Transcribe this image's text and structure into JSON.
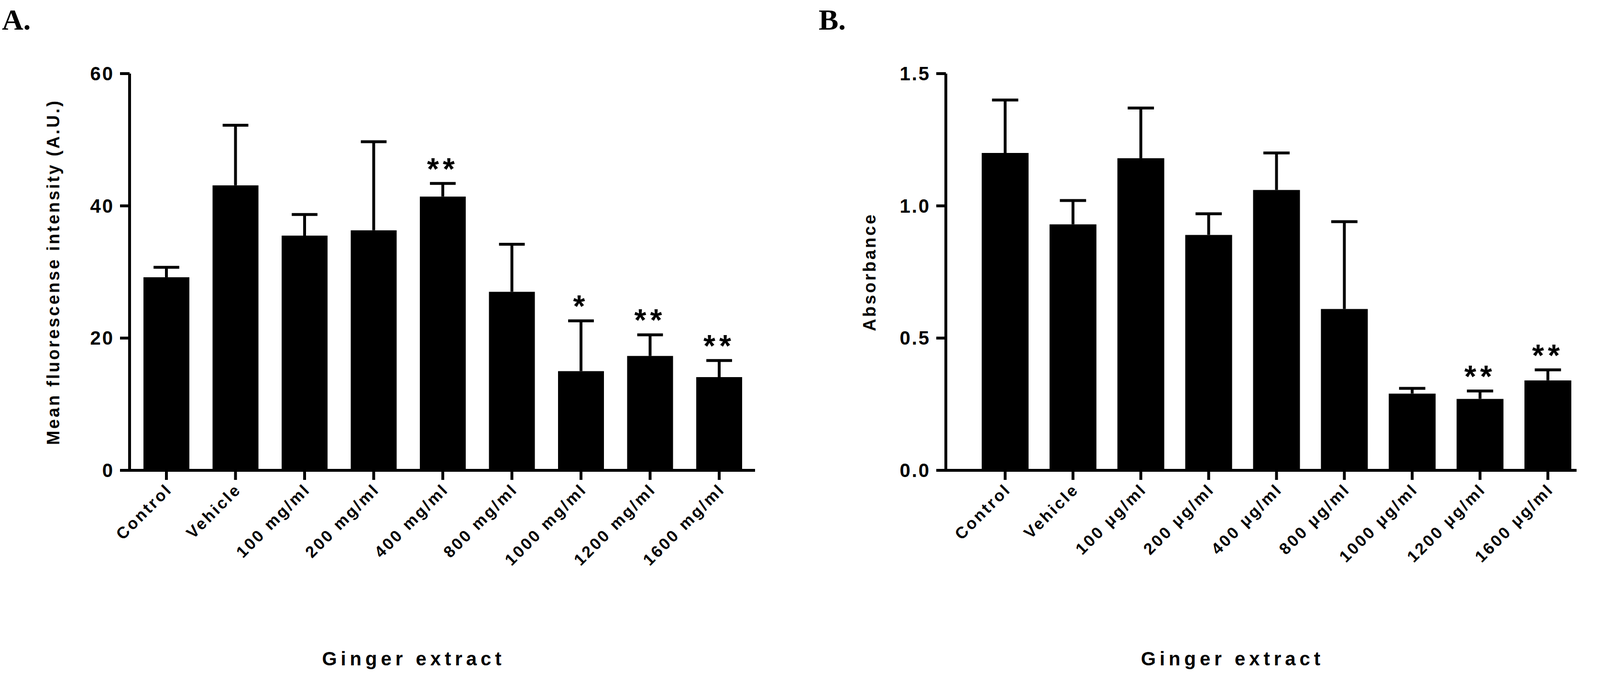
{
  "chart_data": [
    {
      "type": "bar",
      "title": "A.",
      "x_label": "Ginger extract",
      "y_label": "Mean fluorescense intensity (A.U.)",
      "categories": [
        "Control",
        "Vehicle",
        "100 mg/ml",
        "200 mg/ml",
        "400 mg/ml",
        "800 mg/ml",
        "1000 mg/ml",
        "1200 mg/ml",
        "1600 mg/ml"
      ],
      "values": [
        29.2,
        43.1,
        35.5,
        36.3,
        41.4,
        27.0,
        15.0,
        17.3,
        14.1
      ],
      "errors": [
        1.5,
        9.1,
        3.2,
        13.4,
        2.0,
        7.2,
        7.6,
        3.2,
        2.5
      ],
      "significance": [
        null,
        null,
        null,
        null,
        "**",
        null,
        "*",
        "**",
        "**"
      ],
      "color": "#000000",
      "ylim": [
        0,
        60
      ],
      "yticks": [
        0,
        20,
        40,
        60
      ],
      "grid": false
    },
    {
      "type": "bar",
      "title": "B.",
      "x_label": "Ginger extract",
      "y_label": "Absorbance",
      "categories": [
        "Control",
        "Vehicle",
        "100 μg/ml",
        "200 μg/ml",
        "400 μg/ml",
        "800 μg/ml",
        "1000 μg/ml",
        "1200 μg/ml",
        "1600 μg/ml"
      ],
      "values": [
        1.2,
        0.93,
        1.18,
        0.89,
        1.06,
        0.61,
        0.29,
        0.27,
        0.34
      ],
      "errors": [
        0.2,
        0.09,
        0.19,
        0.08,
        0.14,
        0.33,
        0.02,
        0.03,
        0.04
      ],
      "significance": [
        null,
        null,
        null,
        null,
        null,
        null,
        null,
        "**",
        "**"
      ],
      "color": "#000000",
      "ylim": [
        0,
        1.5
      ],
      "yticks": [
        {
          "value": 0,
          "label": "0.0"
        },
        0.5,
        {
          "value": 1,
          "label": "1.0"
        },
        {
          "value": 1.5,
          "label": "1.5"
        }
      ],
      "grid": false
    }
  ]
}
